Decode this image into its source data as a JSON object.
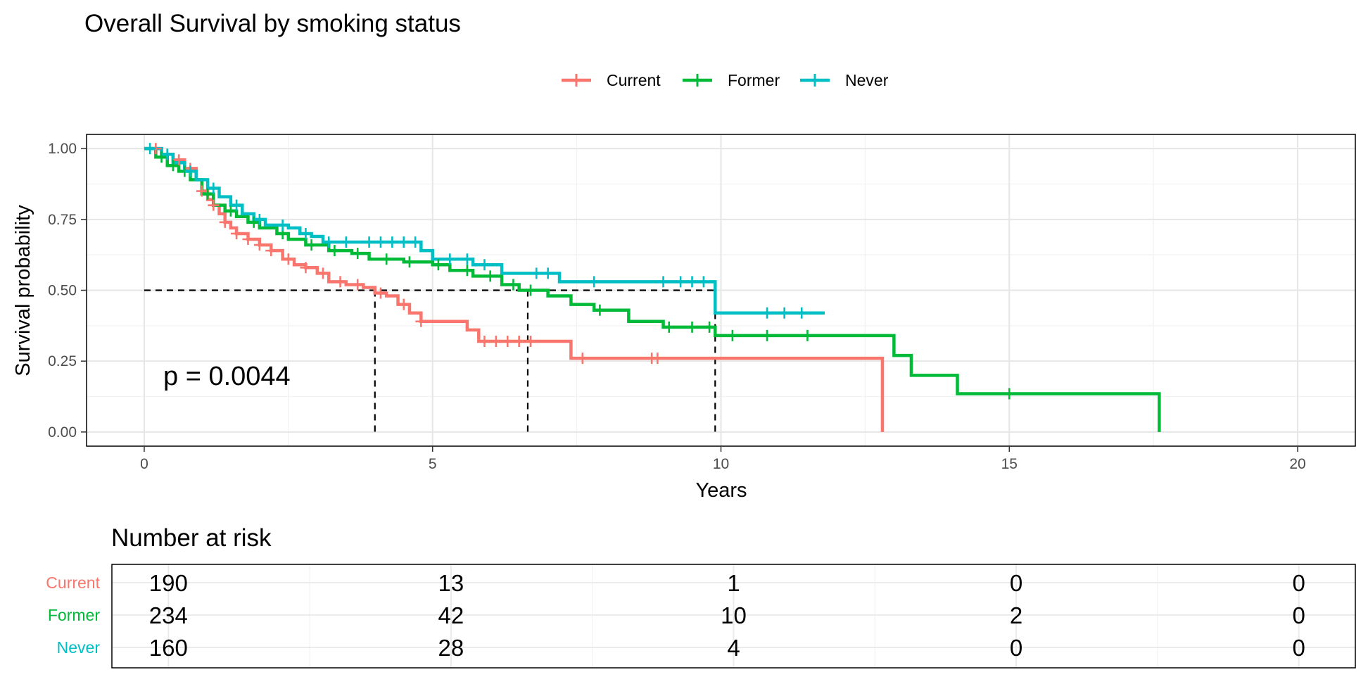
{
  "chart_data": {
    "type": "line",
    "subtype": "kaplan-meier",
    "title": "Overall Survival by smoking status",
    "xlabel": "Years",
    "ylabel": "Survival probability",
    "xlim": [
      -1,
      21
    ],
    "ylim": [
      -0.05,
      1.05
    ],
    "x_ticks": [
      0,
      5,
      10,
      15,
      20
    ],
    "y_ticks": [
      0,
      0.25,
      0.5,
      0.75,
      1.0
    ],
    "x_tick_labels": [
      "0",
      "5",
      "10",
      "15",
      "20"
    ],
    "y_tick_labels": [
      "0.00",
      "0.25",
      "0.50",
      "0.75",
      "1.00"
    ],
    "grid": true,
    "legend_position": "top",
    "pvalue_text": "p = 0.0044",
    "median_line_y": 0.5,
    "medians": [
      4.0,
      6.65,
      9.9
    ],
    "series": [
      {
        "name": "Current",
        "color": "#F8766D",
        "steps": [
          [
            0,
            1.0
          ],
          [
            0.3,
            0.98
          ],
          [
            0.5,
            0.96
          ],
          [
            0.7,
            0.93
          ],
          [
            0.9,
            0.89
          ],
          [
            1.0,
            0.85
          ],
          [
            1.1,
            0.82
          ],
          [
            1.2,
            0.8
          ],
          [
            1.3,
            0.77
          ],
          [
            1.4,
            0.74
          ],
          [
            1.5,
            0.72
          ],
          [
            1.6,
            0.7
          ],
          [
            1.8,
            0.68
          ],
          [
            2.0,
            0.66
          ],
          [
            2.2,
            0.64
          ],
          [
            2.4,
            0.61
          ],
          [
            2.6,
            0.59
          ],
          [
            2.8,
            0.58
          ],
          [
            3.0,
            0.56
          ],
          [
            3.2,
            0.53
          ],
          [
            3.5,
            0.52
          ],
          [
            3.8,
            0.51
          ],
          [
            4.0,
            0.49
          ],
          [
            4.2,
            0.48
          ],
          [
            4.4,
            0.45
          ],
          [
            4.6,
            0.42
          ],
          [
            4.8,
            0.39
          ],
          [
            5.6,
            0.36
          ],
          [
            5.8,
            0.32
          ],
          [
            6.3,
            0.32
          ],
          [
            7.4,
            0.26
          ],
          [
            12.8,
            0.0
          ]
        ],
        "end_x": 12.8,
        "censor_x": [
          0.2,
          0.4,
          0.6,
          0.8,
          1.0,
          1.2,
          1.4,
          1.6,
          1.8,
          2.0,
          2.2,
          2.5,
          2.8,
          3.1,
          3.4,
          3.7,
          4.1,
          4.5,
          4.8,
          5.9,
          6.1,
          6.3,
          6.5,
          6.7,
          7.6,
          8.8,
          8.9
        ],
        "risk": [
          190,
          13,
          1,
          0,
          0
        ]
      },
      {
        "name": "Former",
        "color": "#00BA38",
        "steps": [
          [
            0,
            1.0
          ],
          [
            0.2,
            0.97
          ],
          [
            0.4,
            0.94
          ],
          [
            0.6,
            0.92
          ],
          [
            0.8,
            0.89
          ],
          [
            1.0,
            0.84
          ],
          [
            1.2,
            0.8
          ],
          [
            1.4,
            0.78
          ],
          [
            1.6,
            0.76
          ],
          [
            1.8,
            0.74
          ],
          [
            2.0,
            0.72
          ],
          [
            2.3,
            0.7
          ],
          [
            2.5,
            0.68
          ],
          [
            2.8,
            0.66
          ],
          [
            3.2,
            0.64
          ],
          [
            3.6,
            0.63
          ],
          [
            3.9,
            0.61
          ],
          [
            4.5,
            0.6
          ],
          [
            5.0,
            0.59
          ],
          [
            5.3,
            0.57
          ],
          [
            5.7,
            0.55
          ],
          [
            6.2,
            0.52
          ],
          [
            6.5,
            0.5
          ],
          [
            7.0,
            0.48
          ],
          [
            7.4,
            0.45
          ],
          [
            7.8,
            0.43
          ],
          [
            8.4,
            0.39
          ],
          [
            9.0,
            0.37
          ],
          [
            9.9,
            0.34
          ],
          [
            13.0,
            0.27
          ],
          [
            13.3,
            0.2
          ],
          [
            14.1,
            0.135
          ],
          [
            17.6,
            0.0
          ]
        ],
        "end_x": 17.6,
        "censor_x": [
          0.3,
          0.5,
          0.7,
          1.1,
          1.5,
          1.9,
          2.4,
          2.9,
          3.3,
          3.7,
          4.2,
          4.6,
          5.1,
          5.6,
          6.0,
          6.4,
          6.7,
          7.9,
          9.1,
          9.5,
          9.8,
          10.2,
          10.8,
          11.5,
          15.0
        ],
        "risk": [
          234,
          42,
          10,
          2,
          0
        ]
      },
      {
        "name": "Never",
        "color": "#00BFC4",
        "steps": [
          [
            0,
            1.0
          ],
          [
            0.3,
            0.98
          ],
          [
            0.5,
            0.95
          ],
          [
            0.7,
            0.92
          ],
          [
            0.9,
            0.89
          ],
          [
            1.1,
            0.86
          ],
          [
            1.3,
            0.83
          ],
          [
            1.5,
            0.8
          ],
          [
            1.7,
            0.77
          ],
          [
            1.9,
            0.75
          ],
          [
            2.1,
            0.73
          ],
          [
            2.5,
            0.72
          ],
          [
            2.7,
            0.7
          ],
          [
            2.9,
            0.69
          ],
          [
            3.1,
            0.67
          ],
          [
            4.8,
            0.64
          ],
          [
            5.0,
            0.61
          ],
          [
            5.7,
            0.59
          ],
          [
            6.2,
            0.56
          ],
          [
            7.2,
            0.53
          ],
          [
            9.9,
            0.42
          ]
        ],
        "end_x": 11.8,
        "censor_x": [
          0.1,
          0.4,
          0.8,
          1.2,
          1.6,
          2.0,
          2.4,
          2.8,
          3.2,
          3.5,
          3.9,
          4.1,
          4.3,
          4.5,
          4.7,
          5.3,
          5.6,
          5.9,
          6.8,
          7.0,
          7.8,
          9.0,
          9.3,
          9.5,
          9.7,
          10.8,
          11.1,
          11.4
        ],
        "risk": [
          160,
          28,
          4,
          0,
          0
        ]
      }
    ]
  },
  "risk_table": {
    "title": "Number at risk",
    "x_ticks": [
      0,
      5,
      10,
      15,
      20
    ]
  }
}
